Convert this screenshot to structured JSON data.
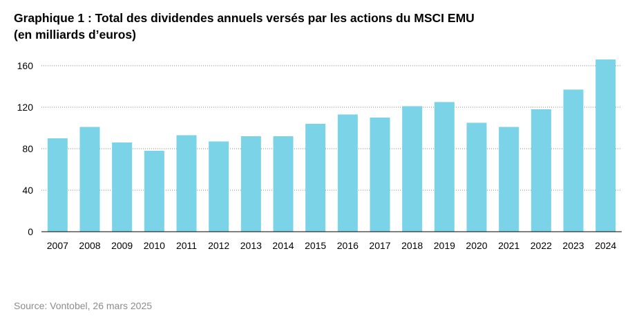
{
  "title_line1": "Graphique 1 : Total des dividendes annuels versés par les actions du MSCI EMU",
  "title_line2": "(en milliards d’euros)",
  "source": "Source: Vontobel, 26 mars 2025",
  "colors": {
    "bar": "#7ad3e6",
    "grid": "#808080",
    "axis": "#000000"
  },
  "chart_data": {
    "type": "bar",
    "title": "Graphique 1 : Total des dividendes annuels versés par les actions du MSCI EMU (en milliards d’euros)",
    "xlabel": "",
    "ylabel": "",
    "categories": [
      "2007",
      "2008",
      "2009",
      "2010",
      "2011",
      "2012",
      "2013",
      "2014",
      "2015",
      "2016",
      "2017",
      "2018",
      "2019",
      "2020",
      "2021",
      "2022",
      "2023",
      "2024"
    ],
    "values": [
      90,
      101,
      86,
      78,
      93,
      87,
      92,
      92,
      104,
      113,
      110,
      121,
      125,
      105,
      101,
      118,
      137,
      166
    ],
    "ylim": [
      0,
      160
    ],
    "yticks": [
      0,
      40,
      80,
      120,
      160
    ],
    "grid": "horizontal dotted",
    "legend": "none"
  }
}
